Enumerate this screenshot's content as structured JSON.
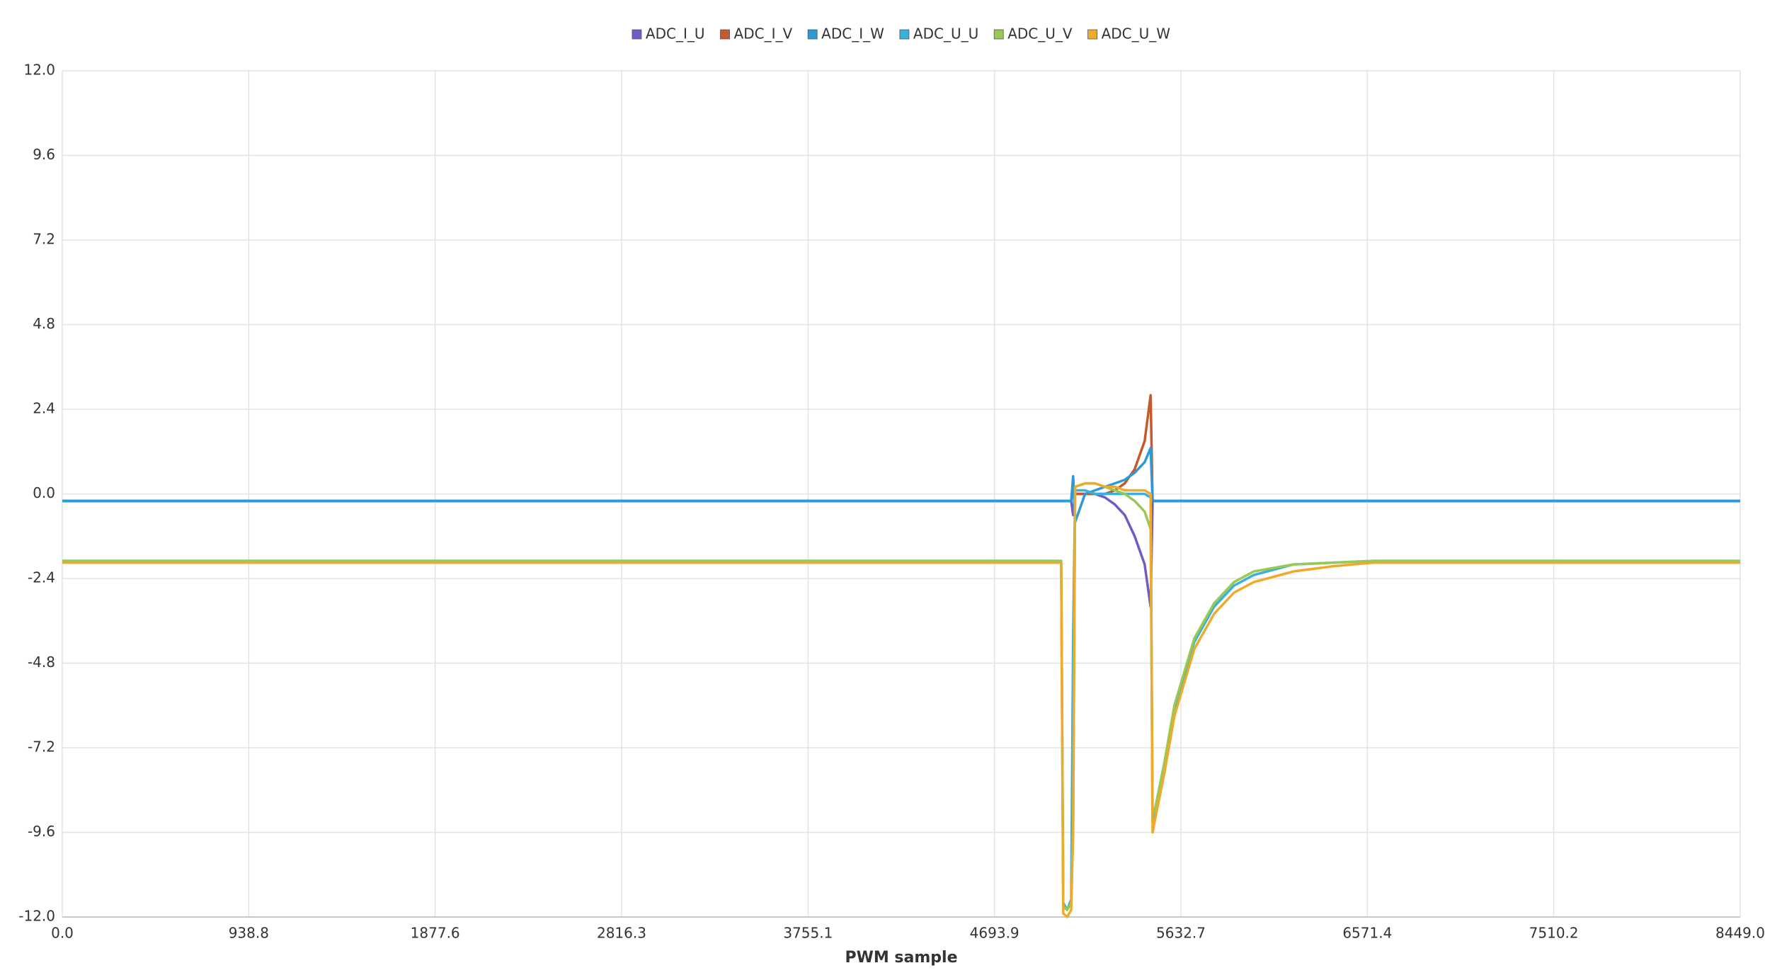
{
  "chart_data": {
    "type": "line",
    "x_label": "PWM sample",
    "x": [
      0,
      1000,
      2000,
      3000,
      4000,
      4900,
      5030,
      5040,
      5060,
      5080,
      5090,
      5100,
      5150,
      5200,
      5250,
      5300,
      5350,
      5400,
      5450,
      5480,
      5490,
      5500,
      5550,
      5600,
      5700,
      5800,
      5900,
      6000,
      6200,
      6400,
      6600,
      6800,
      7000,
      7500,
      8000,
      8449
    ],
    "series": [
      {
        "name": "ADC_I_U",
        "color": "#6f5bc9",
        "values": [
          -0.2,
          -0.2,
          -0.2,
          -0.2,
          -0.2,
          -0.2,
          -0.2,
          -0.2,
          -0.2,
          -0.2,
          -0.6,
          0.0,
          0.0,
          0.0,
          -0.1,
          -0.3,
          -0.6,
          -1.2,
          -2.0,
          -3.2,
          -0.2,
          -0.2,
          -0.2,
          -0.2,
          -0.2,
          -0.2,
          -0.2,
          -0.2,
          -0.2,
          -0.2,
          -0.2,
          -0.2,
          -0.2,
          -0.2,
          -0.2,
          -0.2
        ]
      },
      {
        "name": "ADC_I_V",
        "color": "#c45a2e",
        "values": [
          -0.2,
          -0.2,
          -0.2,
          -0.2,
          -0.2,
          -0.2,
          -0.2,
          -0.2,
          -0.2,
          -0.2,
          0.2,
          0.0,
          0.0,
          0.0,
          0.0,
          0.1,
          0.3,
          0.7,
          1.5,
          2.8,
          -0.2,
          -0.2,
          -0.2,
          -0.2,
          -0.2,
          -0.2,
          -0.2,
          -0.2,
          -0.2,
          -0.2,
          -0.2,
          -0.2,
          -0.2,
          -0.2,
          -0.2,
          -0.2
        ]
      },
      {
        "name": "ADC_I_W",
        "color": "#2c9ad6",
        "values": [
          -0.2,
          -0.2,
          -0.2,
          -0.2,
          -0.2,
          -0.2,
          -0.2,
          -0.2,
          -0.2,
          -0.2,
          0.5,
          -0.8,
          0.0,
          0.1,
          0.2,
          0.3,
          0.4,
          0.6,
          0.9,
          1.3,
          -0.2,
          -0.2,
          -0.2,
          -0.2,
          -0.2,
          -0.2,
          -0.2,
          -0.2,
          -0.2,
          -0.2,
          -0.2,
          -0.2,
          -0.2,
          -0.2,
          -0.2,
          -0.2
        ]
      },
      {
        "name": "ADC_U_U",
        "color": "#3bb0dc",
        "values": [
          -1.9,
          -1.9,
          -1.9,
          -1.9,
          -1.9,
          -1.9,
          -1.9,
          -11.6,
          -11.8,
          -11.5,
          -4.0,
          0.1,
          0.1,
          0.0,
          0.0,
          0.0,
          0.0,
          0.0,
          0.0,
          -0.1,
          -9.3,
          -9.1,
          -7.7,
          -6.1,
          -4.2,
          -3.2,
          -2.6,
          -2.3,
          -2.0,
          -1.95,
          -1.9,
          -1.9,
          -1.9,
          -1.9,
          -1.9,
          -1.9
        ]
      },
      {
        "name": "ADC_U_V",
        "color": "#98c954",
        "values": [
          -1.9,
          -1.9,
          -1.9,
          -1.9,
          -1.9,
          -1.9,
          -1.9,
          -11.7,
          -11.8,
          -11.6,
          -9.5,
          0.2,
          0.3,
          0.3,
          0.2,
          0.1,
          0.0,
          -0.2,
          -0.5,
          -1.0,
          -9.1,
          -9.0,
          -7.6,
          -6.0,
          -4.1,
          -3.1,
          -2.5,
          -2.2,
          -2.0,
          -1.95,
          -1.9,
          -1.9,
          -1.9,
          -1.9,
          -1.9,
          -1.9
        ]
      },
      {
        "name": "ADC_U_W",
        "color": "#eeaa2c",
        "values": [
          -1.95,
          -1.95,
          -1.95,
          -1.95,
          -1.95,
          -1.95,
          -1.95,
          -11.9,
          -12.0,
          -11.8,
          -9.6,
          0.2,
          0.3,
          0.3,
          0.2,
          0.2,
          0.1,
          0.1,
          0.1,
          0.0,
          -9.6,
          -9.3,
          -7.9,
          -6.3,
          -4.4,
          -3.4,
          -2.8,
          -2.5,
          -2.2,
          -2.05,
          -1.95,
          -1.95,
          -1.95,
          -1.95,
          -1.95,
          -1.95
        ]
      }
    ],
    "xlim": [
      0,
      8449
    ],
    "xticks": [
      {
        "value": 0,
        "label": "0.0"
      },
      938.8,
      1877.6,
      2816.3,
      3755.1,
      4693.9,
      5632.7,
      6571.4,
      7510.2,
      {
        "value": 8449,
        "label": "8449.0"
      }
    ],
    "ylim": [
      -12,
      12
    ],
    "yticks": [
      {
        "value": -12,
        "label": "-12.0"
      },
      -9.6,
      -7.2,
      -4.8,
      -2.4,
      {
        "value": 0,
        "label": "0.0"
      },
      2.4,
      4.8,
      7.2,
      9.6,
      {
        "value": 12,
        "label": "12.0"
      }
    ],
    "grid": true,
    "legend": "top"
  }
}
